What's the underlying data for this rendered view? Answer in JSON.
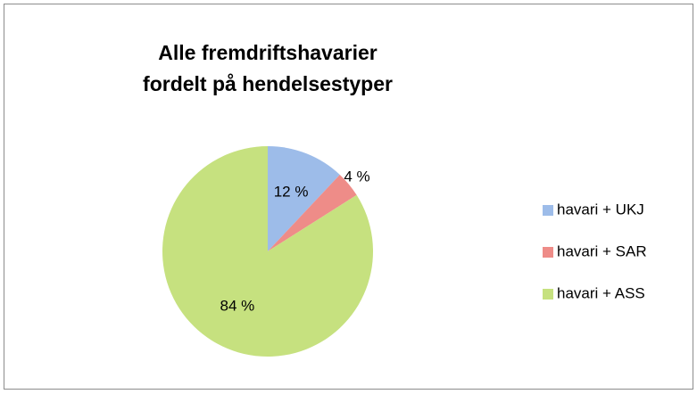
{
  "chart_data": {
    "type": "pie",
    "title": "Alle fremdriftshavarier fordelt på hendelsestyper",
    "categories": [
      "havari + UKJ",
      "havari + SAR",
      "havari + ASS"
    ],
    "values": [
      12,
      4,
      84
    ],
    "value_labels": [
      "12 %",
      "4 %",
      "84 %"
    ],
    "colors": [
      "#9dbce9",
      "#ee8c88",
      "#c6e17f"
    ],
    "legend": "right"
  }
}
